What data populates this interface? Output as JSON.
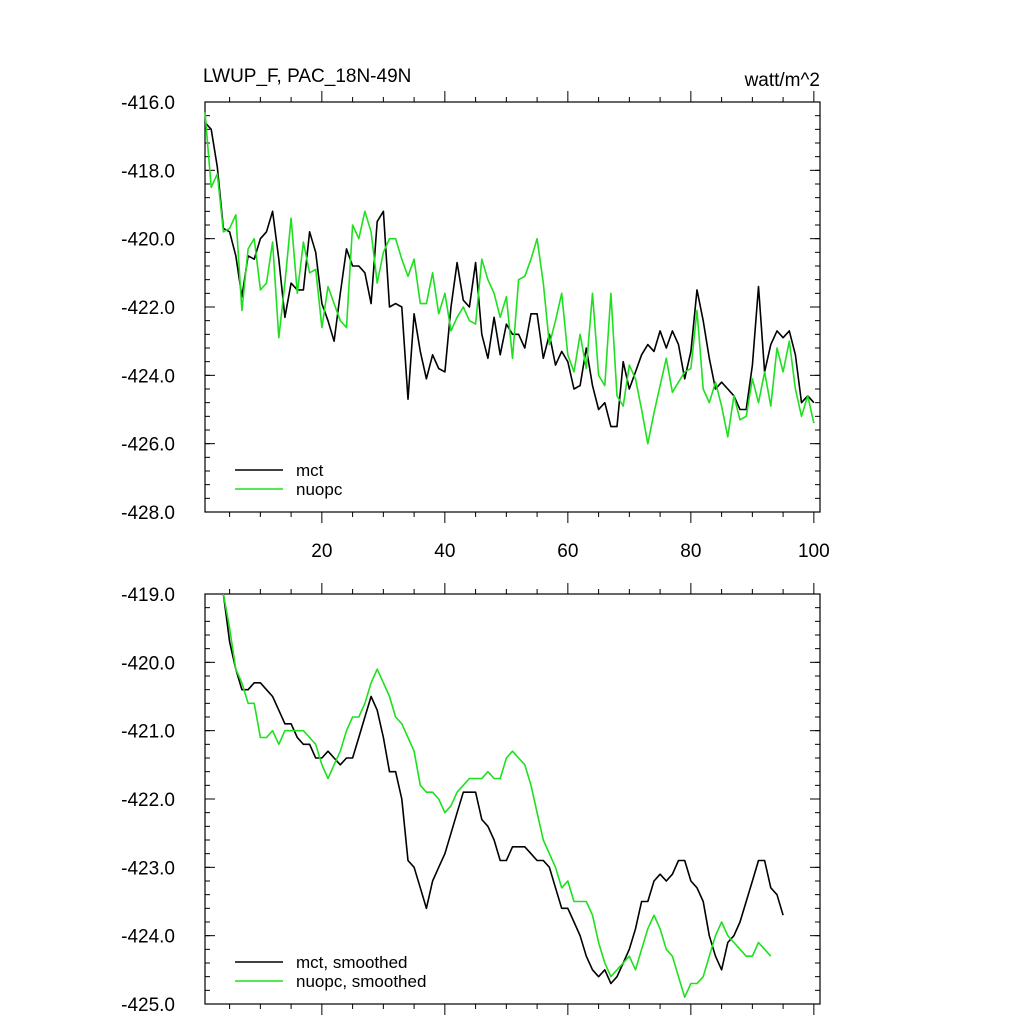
{
  "figure": {
    "title_left": "LWUP_F, PAC_18N-49N",
    "title_right": "watt/m^2"
  },
  "colors": {
    "mct": "#000000",
    "nuopc": "#1ee01e"
  },
  "chart_data": [
    {
      "type": "line",
      "title": "LWUP_F, PAC_18N-49N",
      "units": "watt/m^2",
      "xlim": [
        1,
        101
      ],
      "ylim": [
        -428.0,
        -416.0
      ],
      "x_ticks": [
        20,
        40,
        60,
        80,
        100
      ],
      "x_tick_labels": [
        "20",
        "40",
        "60",
        "80",
        "100"
      ],
      "y_ticks": [
        -416.0,
        -418.0,
        -420.0,
        -422.0,
        -424.0,
        -426.0,
        -428.0
      ],
      "y_tick_labels": [
        "-416.0",
        "-418.0",
        "-420.0",
        "-422.0",
        "-424.0",
        "-426.0",
        "-428.0"
      ],
      "legend_position": "bottom-left",
      "series": [
        {
          "name": "mct",
          "color": "#000000",
          "x_start": 1,
          "values": [
            -416.6,
            -416.8,
            -417.9,
            -419.7,
            -419.8,
            -420.5,
            -421.7,
            -420.5,
            -420.6,
            -420.0,
            -419.8,
            -419.2,
            -420.6,
            -422.3,
            -421.3,
            -421.5,
            -421.5,
            -419.8,
            -420.4,
            -421.9,
            -422.4,
            -423.0,
            -421.6,
            -420.3,
            -420.8,
            -420.8,
            -421.0,
            -421.9,
            -419.5,
            -419.2,
            -422.0,
            -421.9,
            -422.0,
            -424.7,
            -422.2,
            -423.3,
            -424.1,
            -423.4,
            -423.8,
            -423.9,
            -422.0,
            -420.7,
            -421.8,
            -422.0,
            -420.7,
            -422.8,
            -423.5,
            -422.3,
            -423.4,
            -422.5,
            -422.8,
            -422.8,
            -423.2,
            -422.2,
            -422.2,
            -423.5,
            -422.8,
            -423.7,
            -423.3,
            -423.6,
            -424.4,
            -424.3,
            -423.2,
            -424.3,
            -425.0,
            -424.8,
            -425.5,
            -425.5,
            -423.6,
            -424.4,
            -423.9,
            -423.4,
            -423.1,
            -423.3,
            -422.7,
            -423.2,
            -422.7,
            -423.1,
            -424.1,
            -423.3,
            -421.5,
            -422.4,
            -423.5,
            -424.4,
            -424.2,
            -424.4,
            -424.6,
            -425.0,
            -425.0,
            -423.7,
            -421.4,
            -423.9,
            -423.1,
            -422.7,
            -422.9,
            -422.7,
            -423.4,
            -424.8,
            -424.6,
            -424.8
          ],
          "smoothed_values": [
            -419.0,
            -419.7,
            -420.1,
            -420.4,
            -420.4,
            -420.3,
            -420.3,
            -420.4,
            -420.5,
            -420.7,
            -420.9,
            -420.9,
            -421.1,
            -421.2,
            -421.2,
            -421.4,
            -421.4,
            -421.3,
            -421.4,
            -421.5,
            -421.4,
            -421.4,
            -421.1,
            -420.8,
            -420.5,
            -420.7,
            -421.1,
            -421.6,
            -421.6,
            -422.0,
            -422.9,
            -423.0,
            -423.3,
            -423.6,
            -423.2,
            -423.0,
            -422.8,
            -422.5,
            -422.2,
            -421.9,
            -421.9,
            -421.9,
            -422.3,
            -422.4,
            -422.6,
            -422.9,
            -422.9,
            -422.7,
            -422.7,
            -422.7,
            -422.8,
            -422.9,
            -422.9,
            -423.0,
            -423.3,
            -423.6,
            -423.6,
            -423.8,
            -424.0,
            -424.3,
            -424.5,
            -424.6,
            -424.5,
            -424.7,
            -424.6,
            -424.4,
            -424.2,
            -423.9,
            -423.5,
            -423.5,
            -423.2,
            -423.1,
            -423.2,
            -423.1,
            -422.9,
            -422.9,
            -423.2,
            -423.3,
            -423.5,
            -424.0,
            -424.3,
            -424.5,
            -424.1,
            -424.0,
            -423.8,
            -423.5,
            -423.2,
            -422.9,
            -422.9,
            -423.3,
            -423.4,
            -423.7
          ]
        },
        {
          "name": "nuopc",
          "color": "#1ee01e",
          "x_start": 1,
          "values": [
            -416.3,
            -418.5,
            -418.1,
            -419.8,
            -419.7,
            -419.3,
            -422.1,
            -420.3,
            -420.0,
            -421.5,
            -421.3,
            -420.1,
            -422.9,
            -421.3,
            -419.4,
            -421.6,
            -420.1,
            -421.0,
            -420.9,
            -422.6,
            -421.4,
            -421.9,
            -422.4,
            -422.6,
            -419.6,
            -420.0,
            -419.2,
            -419.8,
            -421.3,
            -420.4,
            -420.0,
            -420.0,
            -420.6,
            -421.1,
            -420.6,
            -421.9,
            -421.9,
            -421.0,
            -422.2,
            -421.6,
            -422.7,
            -422.3,
            -422.0,
            -422.4,
            -422.5,
            -420.6,
            -421.2,
            -421.6,
            -422.3,
            -421.7,
            -423.5,
            -421.2,
            -421.1,
            -420.6,
            -420.0,
            -421.3,
            -423.1,
            -422.4,
            -421.6,
            -423.4,
            -423.9,
            -422.8,
            -423.8,
            -421.6,
            -424.0,
            -424.3,
            -421.6,
            -424.6,
            -424.9,
            -423.7,
            -424.1,
            -425.0,
            -426.0,
            -425.1,
            -424.3,
            -423.5,
            -424.5,
            -424.2,
            -423.9,
            -423.8,
            -422.1,
            -424.4,
            -424.8,
            -424.2,
            -424.9,
            -425.8,
            -424.6,
            -425.3,
            -425.2,
            -424.1,
            -424.8,
            -423.9,
            -424.9,
            -423.2,
            -423.9,
            -423.0,
            -424.4,
            -425.2,
            -424.6,
            -425.4
          ],
          "smoothed_values": [
            -419.0,
            -419.5,
            -420.1,
            -420.3,
            -420.6,
            -420.6,
            -421.1,
            -421.1,
            -421.0,
            -421.2,
            -421.0,
            -421.0,
            -421.0,
            -421.0,
            -421.1,
            -421.2,
            -421.5,
            -421.7,
            -421.5,
            -421.3,
            -421.0,
            -420.8,
            -420.8,
            -420.6,
            -420.3,
            -420.1,
            -420.3,
            -420.5,
            -420.8,
            -420.9,
            -421.1,
            -421.3,
            -421.8,
            -421.9,
            -421.9,
            -422.0,
            -422.2,
            -422.1,
            -421.9,
            -421.8,
            -421.7,
            -421.7,
            -421.7,
            -421.6,
            -421.7,
            -421.7,
            -421.4,
            -421.3,
            -421.4,
            -421.5,
            -421.8,
            -422.2,
            -422.6,
            -422.8,
            -423.0,
            -423.3,
            -423.2,
            -423.5,
            -423.5,
            -423.5,
            -423.7,
            -424.1,
            -424.4,
            -424.6,
            -424.5,
            -424.4,
            -424.3,
            -424.5,
            -424.2,
            -423.9,
            -423.7,
            -423.9,
            -424.2,
            -424.3,
            -424.6,
            -424.9,
            -424.7,
            -424.7,
            -424.6,
            -424.3,
            -424.0,
            -423.8,
            -424.0,
            -424.1,
            -424.2,
            -424.3,
            -424.3,
            -424.1,
            -424.2,
            -424.3
          ]
        }
      ],
      "legend": [
        {
          "label": "mct",
          "color": "#000000"
        },
        {
          "label": "nuopc",
          "color": "#1ee01e"
        }
      ]
    },
    {
      "type": "line",
      "title": "",
      "xlim": [
        1,
        101
      ],
      "ylim": [
        -425.0,
        -419.0
      ],
      "x_ticks": [
        20,
        40,
        60,
        80,
        100
      ],
      "y_ticks": [
        -419.0,
        -420.0,
        -421.0,
        -422.0,
        -423.0,
        -424.0,
        -425.0
      ],
      "y_tick_labels": [
        "-419.0",
        "-420.0",
        "-421.0",
        "-422.0",
        "-423.0",
        "-424.0",
        "-425.0"
      ],
      "legend_position": "bottom-left",
      "series": [
        {
          "name": "mct, smoothed",
          "color": "#000000",
          "x_start": 4,
          "values": [
            -419.0,
            -419.7,
            -420.1,
            -420.4,
            -420.4,
            -420.3,
            -420.3,
            -420.4,
            -420.5,
            -420.7,
            -420.9,
            -420.9,
            -421.1,
            -421.2,
            -421.2,
            -421.4,
            -421.4,
            -421.3,
            -421.4,
            -421.5,
            -421.4,
            -421.4,
            -421.1,
            -420.8,
            -420.5,
            -420.7,
            -421.1,
            -421.6,
            -421.6,
            -422.0,
            -422.9,
            -423.0,
            -423.3,
            -423.6,
            -423.2,
            -423.0,
            -422.8,
            -422.5,
            -422.2,
            -421.9,
            -421.9,
            -421.9,
            -422.3,
            -422.4,
            -422.6,
            -422.9,
            -422.9,
            -422.7,
            -422.7,
            -422.7,
            -422.8,
            -422.9,
            -422.9,
            -423.0,
            -423.3,
            -423.6,
            -423.6,
            -423.8,
            -424.0,
            -424.3,
            -424.5,
            -424.6,
            -424.5,
            -424.7,
            -424.6,
            -424.4,
            -424.2,
            -423.9,
            -423.5,
            -423.5,
            -423.2,
            -423.1,
            -423.2,
            -423.1,
            -422.9,
            -422.9,
            -423.2,
            -423.3,
            -423.5,
            -424.0,
            -424.3,
            -424.5,
            -424.1,
            -424.0,
            -423.8,
            -423.5,
            -423.2,
            -422.9,
            -422.9,
            -423.3,
            -423.4,
            -423.7
          ]
        },
        {
          "name": "nuopc, smoothed",
          "color": "#1ee01e",
          "x_start": 4,
          "values": [
            -419.0,
            -419.5,
            -420.1,
            -420.3,
            -420.6,
            -420.6,
            -421.1,
            -421.1,
            -421.0,
            -421.2,
            -421.0,
            -421.0,
            -421.0,
            -421.0,
            -421.1,
            -421.2,
            -421.5,
            -421.7,
            -421.5,
            -421.3,
            -421.0,
            -420.8,
            -420.8,
            -420.6,
            -420.3,
            -420.1,
            -420.3,
            -420.5,
            -420.8,
            -420.9,
            -421.1,
            -421.3,
            -421.8,
            -421.9,
            -421.9,
            -422.0,
            -422.2,
            -422.1,
            -421.9,
            -421.8,
            -421.7,
            -421.7,
            -421.7,
            -421.6,
            -421.7,
            -421.7,
            -421.4,
            -421.3,
            -421.4,
            -421.5,
            -421.8,
            -422.2,
            -422.6,
            -422.8,
            -423.0,
            -423.3,
            -423.2,
            -423.5,
            -423.5,
            -423.5,
            -423.7,
            -424.1,
            -424.4,
            -424.6,
            -424.5,
            -424.4,
            -424.3,
            -424.5,
            -424.2,
            -423.9,
            -423.7,
            -423.9,
            -424.2,
            -424.3,
            -424.6,
            -424.9,
            -424.7,
            -424.7,
            -424.6,
            -424.3,
            -424.0,
            -423.8,
            -424.0,
            -424.1,
            -424.2,
            -424.3,
            -424.3,
            -424.1,
            -424.2,
            -424.3
          ]
        }
      ],
      "legend": [
        {
          "label": "mct, smoothed",
          "color": "#000000"
        },
        {
          "label": "nuopc, smoothed",
          "color": "#1ee01e"
        }
      ]
    }
  ]
}
